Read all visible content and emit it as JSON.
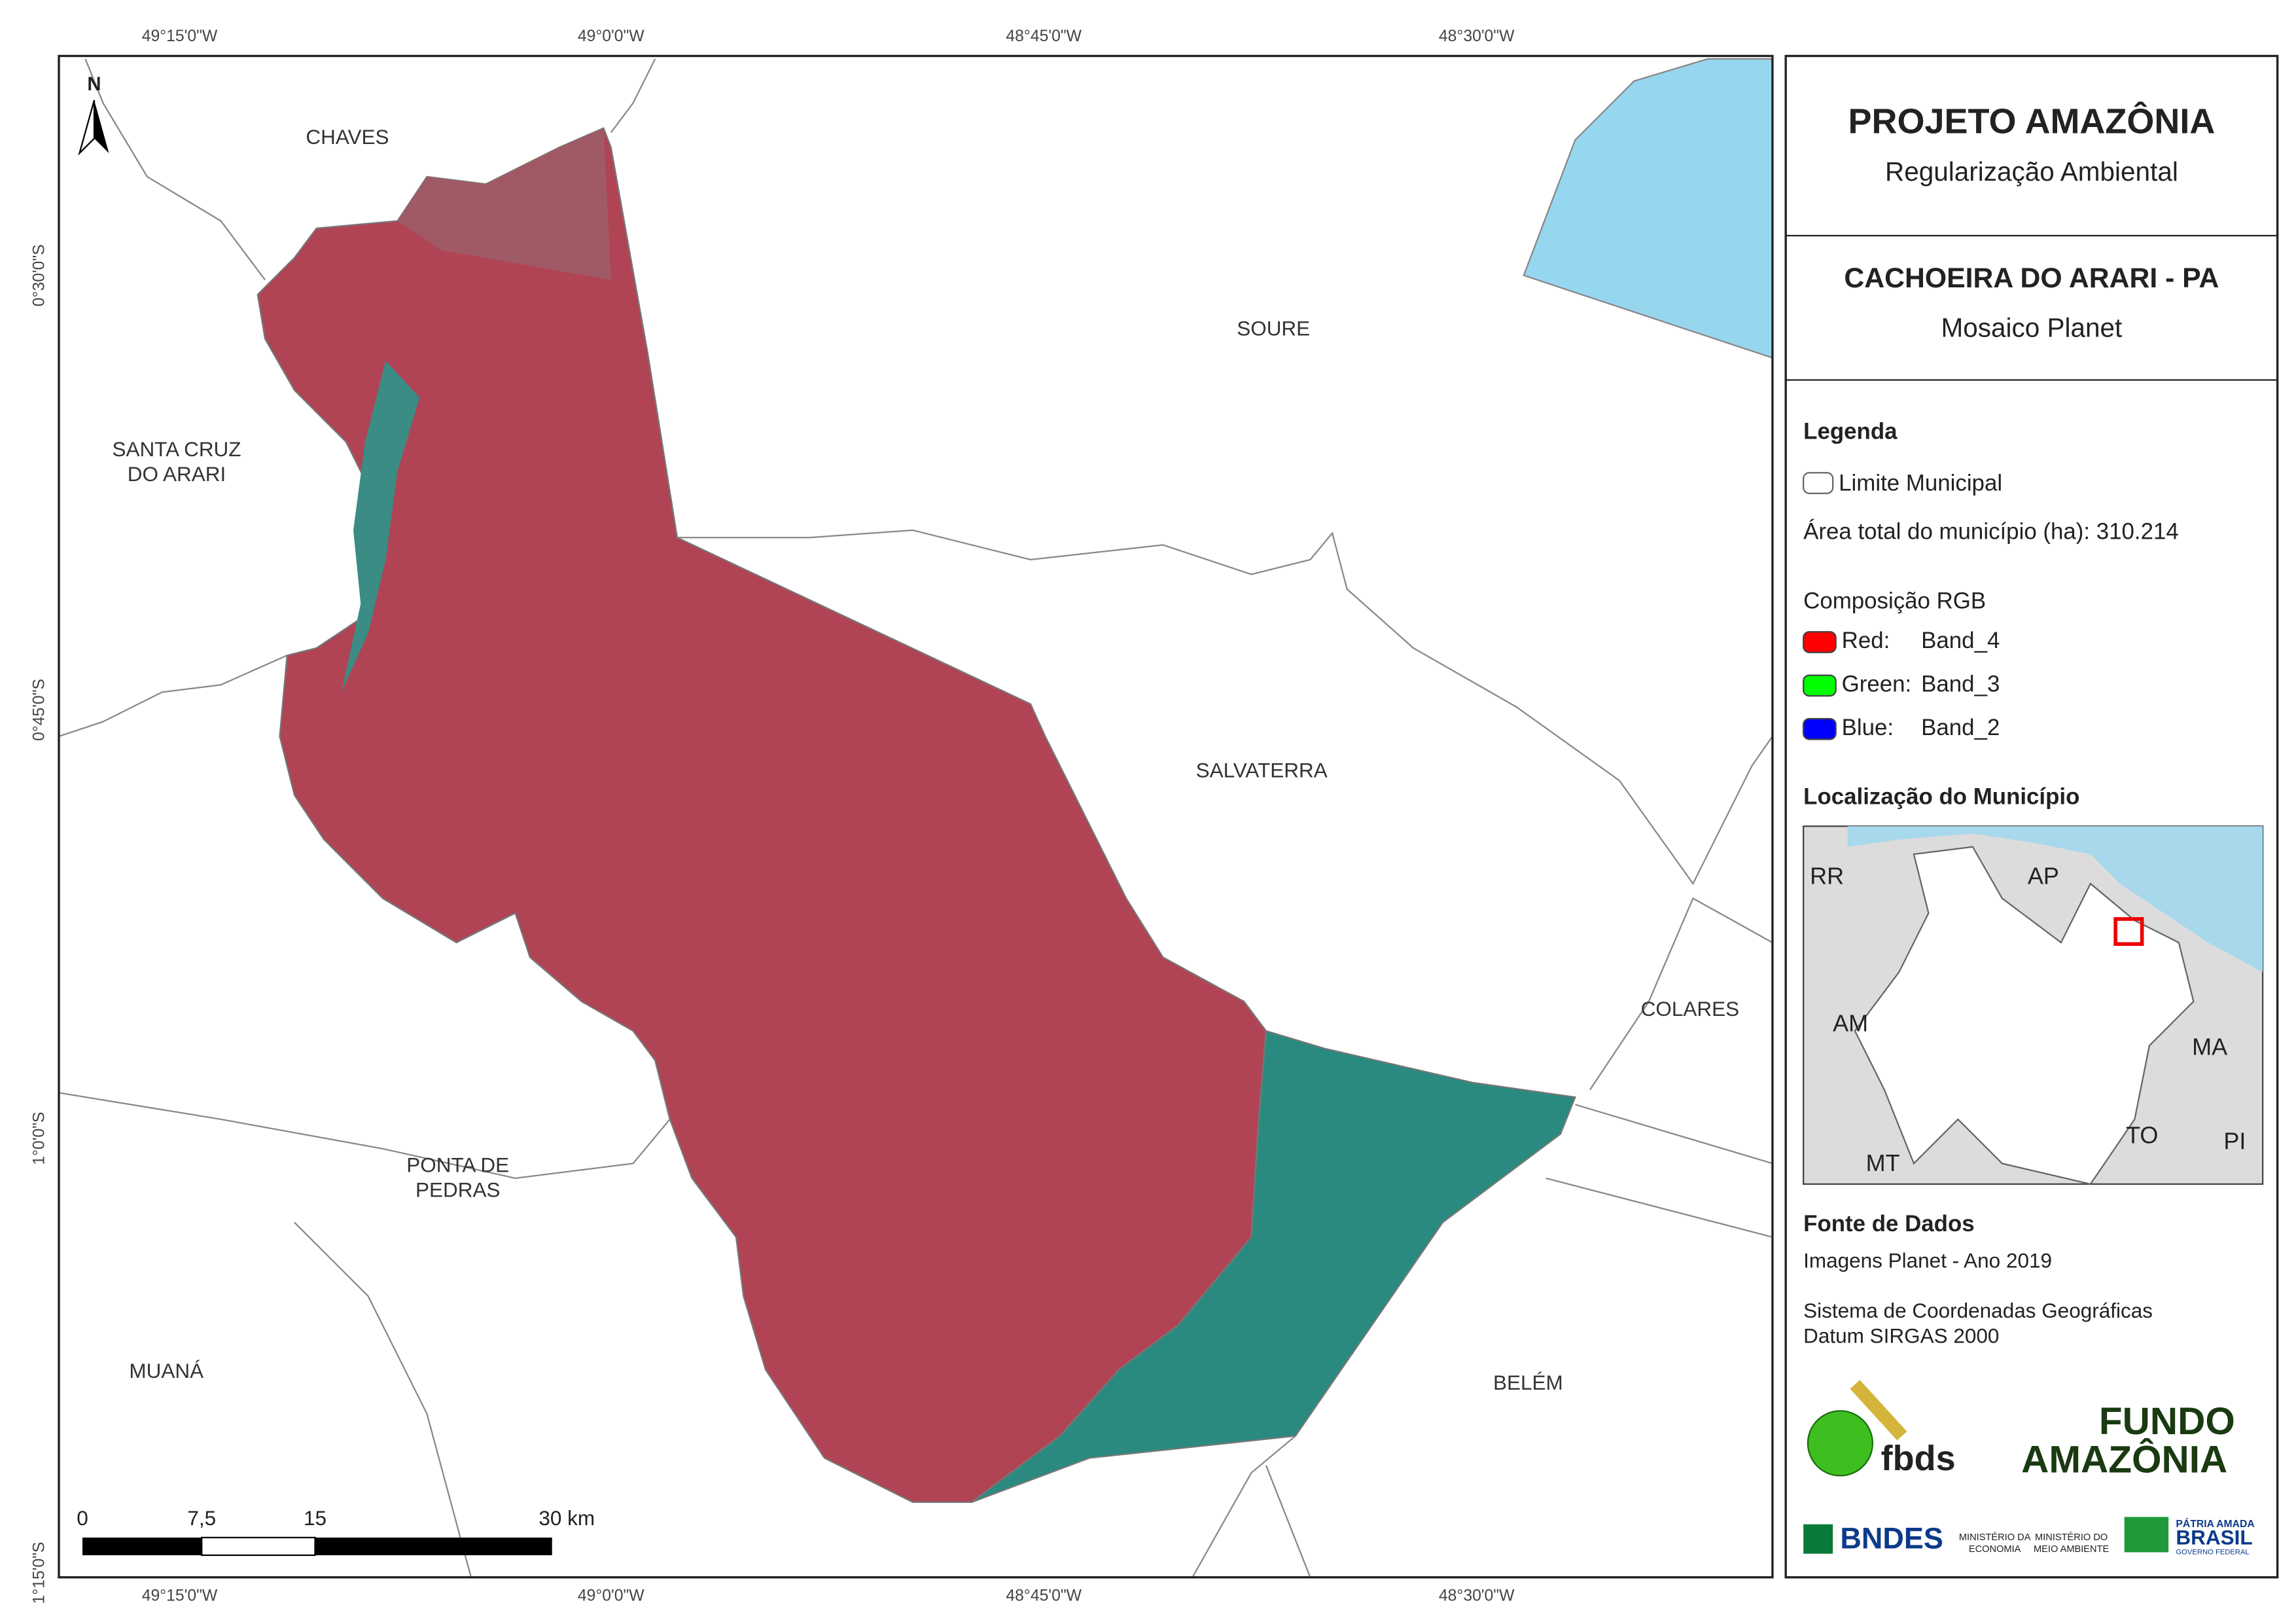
{
  "header": {
    "title": "PROJETO AMAZÔNIA",
    "subtitle": "Regularização Ambiental"
  },
  "map_title": {
    "title": "CACHOEIRA DO ARARI - PA",
    "subtitle": "Mosaico Planet"
  },
  "legend": {
    "title": "Legenda",
    "boundary": "Limite Municipal",
    "area_label": "Área total do município (ha): 310.214",
    "rgb_title": "Composição RGB",
    "bands": [
      {
        "name": "Red:",
        "band": "Band_4",
        "color": "#ff0000"
      },
      {
        "name": "Green:",
        "band": "Band_3",
        "color": "#00ff00"
      },
      {
        "name": "Blue:",
        "band": "Band_2",
        "color": "#0000ff"
      }
    ]
  },
  "location": {
    "title": "Localização do Município",
    "states": [
      "RR",
      "AP",
      "AM",
      "MA",
      "TO",
      "MT",
      "PI"
    ]
  },
  "sources": {
    "title": "Fonte de Dados",
    "lines": [
      "Imagens Planet - Ano 2019",
      "Sistema de Coordenadas Geográficas",
      "Datum SIRGAS 2000"
    ]
  },
  "logos": {
    "fbds": "fbds",
    "fundo": "FUNDO",
    "amazonia": "AMAZÔNIA",
    "bndes": "BNDES",
    "min1": [
      "MINISTÉRIO DA",
      "ECONOMIA"
    ],
    "min2": [
      "MINISTÉRIO DO",
      "MEIO AMBIENTE"
    ],
    "patria": "PÁTRIA AMADA",
    "brasil": "BRASIL",
    "gov": "GOVERNO FEDERAL"
  },
  "map": {
    "north": "N",
    "places": [
      {
        "lines": [
          "CHAVES"
        ]
      },
      {
        "lines": [
          "SOURE"
        ]
      },
      {
        "lines": [
          "SANTA CRUZ",
          "DO ARARI"
        ]
      },
      {
        "lines": [
          "SALVATERRA"
        ]
      },
      {
        "lines": [
          "COLARES"
        ]
      },
      {
        "lines": [
          "PONTA DE",
          "PEDRAS"
        ]
      },
      {
        "lines": [
          "MUANÁ"
        ]
      },
      {
        "lines": [
          "BELÉM"
        ]
      }
    ],
    "lon_ticks": [
      "49°15'0\"W",
      "49°0'0\"W",
      "48°45'0\"W",
      "48°30'0\"W"
    ],
    "lat_ticks": [
      "0°30'0\"S",
      "0°45'0\"S",
      "1°0'0\"S",
      "1°15'0\"S"
    ],
    "scale": [
      "0",
      "7,5",
      "15",
      "30 km"
    ]
  }
}
